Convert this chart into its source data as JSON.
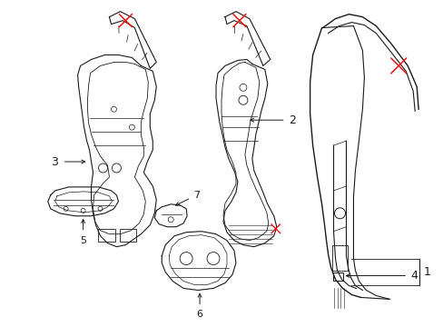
{
  "background_color": "#ffffff",
  "line_color": "#1a1a1a",
  "red_color": "#ee1111",
  "fig_width": 4.89,
  "fig_height": 3.6,
  "dpi": 100
}
